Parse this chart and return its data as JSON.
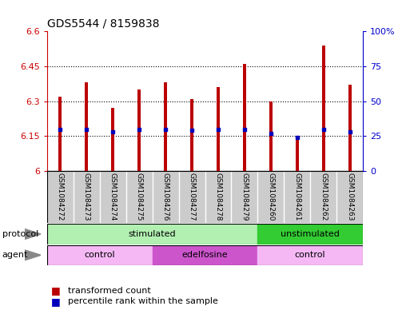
{
  "title": "GDS5544 / 8159838",
  "samples": [
    "GSM1084272",
    "GSM1084273",
    "GSM1084274",
    "GSM1084275",
    "GSM1084276",
    "GSM1084277",
    "GSM1084278",
    "GSM1084279",
    "GSM1084260",
    "GSM1084261",
    "GSM1084262",
    "GSM1084263"
  ],
  "transformed_counts": [
    6.32,
    6.38,
    6.27,
    6.35,
    6.38,
    6.31,
    6.36,
    6.46,
    6.3,
    6.15,
    6.54,
    6.37
  ],
  "percentile_ranks": [
    30,
    30,
    28,
    30,
    30,
    29,
    30,
    30,
    27,
    24,
    30,
    28
  ],
  "ylim_left": [
    6.0,
    6.6
  ],
  "ylim_right": [
    0,
    100
  ],
  "yticks_left": [
    6.0,
    6.15,
    6.3,
    6.45,
    6.6
  ],
  "ytick_labels_left": [
    "6",
    "6.15",
    "6.3",
    "6.45",
    "6.6"
  ],
  "yticks_right": [
    0,
    25,
    50,
    75,
    100
  ],
  "ytick_labels_right": [
    "0",
    "25",
    "50",
    "75",
    "100%"
  ],
  "bar_color": "#bb0000",
  "dot_color": "#0000bb",
  "bar_width": 0.12,
  "stim_color_light": "#b2f0b2",
  "stim_color_dark": "#33cc33",
  "ctrl_color": "#f5b8f5",
  "edel_color": "#cc55cc",
  "sample_band_color": "#cccccc",
  "legend_items": [
    {
      "label": "transformed count",
      "color": "#bb0000"
    },
    {
      "label": "percentile rank within the sample",
      "color": "#0000bb"
    }
  ],
  "background_color": "#ffffff",
  "left_axis_color": "#cc0000",
  "right_axis_color": "#0000cc",
  "base_value": 6.0,
  "stim_count": 8,
  "ctrl1_count": 4,
  "edel_count": 4,
  "ctrl2_count": 4
}
